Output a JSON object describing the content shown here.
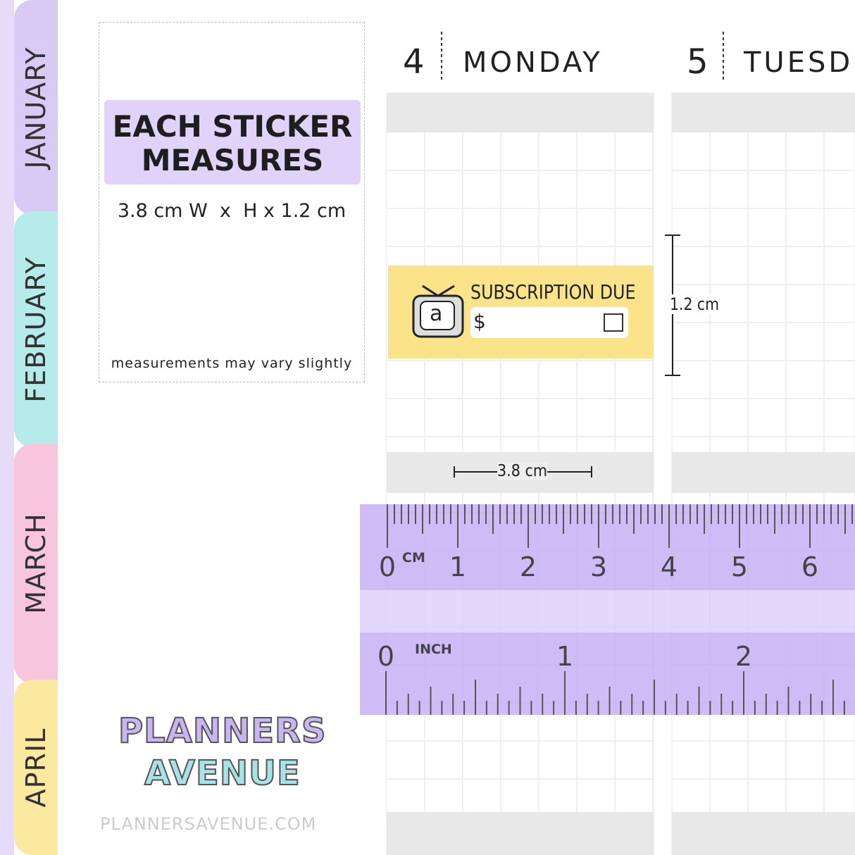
{
  "tabs": [
    "JANUARY",
    "FEBRUARY",
    "MARCH",
    "APRIL"
  ],
  "info": {
    "title_line1": "EACH STICKER",
    "title_line2": "MEASURES",
    "size": "3.8 cm W  x  H x 1.2 cm",
    "note": "measurements may vary slightly"
  },
  "days": [
    {
      "number": "4",
      "name": "MONDAY"
    },
    {
      "number": "5",
      "name": "TUESD"
    }
  ],
  "sticker": {
    "title": "SUBSCRIPTION DUE",
    "currency": "$",
    "icon_letter": "a"
  },
  "dimensions": {
    "height": "1.2 cm",
    "width": "3.8 cm"
  },
  "ruler": {
    "cm_unit": "CM",
    "cm_labels": [
      "0",
      "1",
      "2",
      "3",
      "4",
      "5",
      "6"
    ],
    "inch_unit": "INCH",
    "inch_labels": [
      "0",
      "1",
      "2"
    ]
  },
  "logo": {
    "line1": "PLANNERS",
    "line2": "AVENUE"
  },
  "footer": "PLANNERSAVENUE.COM"
}
